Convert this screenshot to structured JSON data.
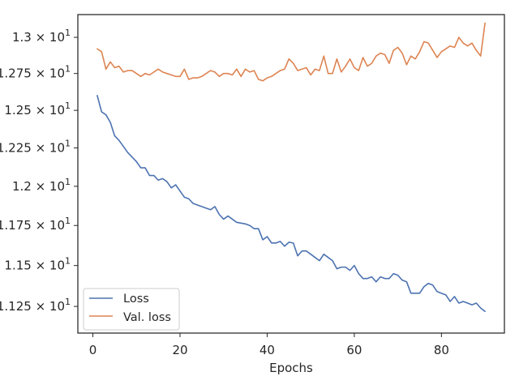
{
  "chart_data": {
    "type": "line",
    "xlabel": "Epochs",
    "ylabel": "",
    "title": "",
    "xlim": [
      -3.45,
      94.45
    ],
    "ylim": [
      11.09,
      13.16
    ],
    "y_scale": "log",
    "grid": false,
    "legend_position": "lower-left",
    "x_ticks": [
      0,
      20,
      40,
      60,
      80
    ],
    "x_tick_labels": [
      "0",
      "20",
      "40",
      "60",
      "80"
    ],
    "y_ticks": [
      11.25,
      11.5,
      11.75,
      12.0,
      12.25,
      12.5,
      12.75,
      13.0
    ],
    "y_tick_labels": [
      {
        "mantissa": "1.125",
        "sep": " × ",
        "base": "10",
        "exp": "1"
      },
      {
        "mantissa": "1.15",
        "sep": " × ",
        "base": "10",
        "exp": "1"
      },
      {
        "mantissa": "1.175",
        "sep": " × ",
        "base": "10",
        "exp": "1"
      },
      {
        "mantissa": "1.2",
        "sep": " × ",
        "base": "10",
        "exp": "1"
      },
      {
        "mantissa": "1.225",
        "sep": " × ",
        "base": "10",
        "exp": "1"
      },
      {
        "mantissa": "1.25",
        "sep": " × ",
        "base": "10",
        "exp": "1"
      },
      {
        "mantissa": "1.275",
        "sep": " × ",
        "base": "10",
        "exp": "1"
      },
      {
        "mantissa": "1.3",
        "sep": " × ",
        "base": "10",
        "exp": "1"
      }
    ],
    "x": [
      1,
      2,
      3,
      4,
      5,
      6,
      7,
      8,
      9,
      10,
      11,
      12,
      13,
      14,
      15,
      16,
      17,
      18,
      19,
      20,
      21,
      22,
      23,
      24,
      25,
      26,
      27,
      28,
      29,
      30,
      31,
      32,
      33,
      34,
      35,
      36,
      37,
      38,
      39,
      40,
      41,
      42,
      43,
      44,
      45,
      46,
      47,
      48,
      49,
      50,
      51,
      52,
      53,
      54,
      55,
      56,
      57,
      58,
      59,
      60,
      61,
      62,
      63,
      64,
      65,
      66,
      67,
      68,
      69,
      70,
      71,
      72,
      73,
      74,
      75,
      76,
      77,
      78,
      79,
      80,
      81,
      82,
      83,
      84,
      85,
      86,
      87,
      88,
      89,
      90
    ],
    "series": [
      {
        "name": "Loss",
        "color": "#4c72b0",
        "values": [
          12.6,
          12.49,
          12.47,
          12.42,
          12.33,
          12.3,
          12.26,
          12.22,
          12.19,
          12.16,
          12.12,
          12.12,
          12.07,
          12.07,
          12.04,
          12.05,
          12.03,
          11.99,
          12.01,
          11.97,
          11.93,
          11.92,
          11.89,
          11.88,
          11.87,
          11.86,
          11.85,
          11.87,
          11.82,
          11.79,
          11.81,
          11.79,
          11.77,
          11.765,
          11.76,
          11.75,
          11.73,
          11.73,
          11.66,
          11.68,
          11.64,
          11.64,
          11.65,
          11.62,
          11.645,
          11.64,
          11.56,
          11.59,
          11.59,
          11.57,
          11.55,
          11.53,
          11.57,
          11.55,
          11.53,
          11.48,
          11.49,
          11.49,
          11.47,
          11.5,
          11.45,
          11.42,
          11.42,
          11.43,
          11.4,
          11.43,
          11.42,
          11.42,
          11.45,
          11.44,
          11.41,
          11.4,
          11.33,
          11.33,
          11.33,
          11.37,
          11.39,
          11.38,
          11.34,
          11.33,
          11.32,
          11.28,
          11.31,
          11.27,
          11.28,
          11.27,
          11.26,
          11.27,
          11.24,
          11.22
        ]
      },
      {
        "name": "Val. loss",
        "color": "#dd8452",
        "values": [
          12.92,
          12.9,
          12.78,
          12.83,
          12.79,
          12.8,
          12.76,
          12.77,
          12.77,
          12.75,
          12.73,
          12.75,
          12.74,
          12.76,
          12.78,
          12.76,
          12.75,
          12.74,
          12.73,
          12.73,
          12.78,
          12.71,
          12.72,
          12.72,
          12.73,
          12.75,
          12.77,
          12.76,
          12.73,
          12.75,
          12.75,
          12.74,
          12.78,
          12.73,
          12.78,
          12.76,
          12.77,
          12.71,
          12.7,
          12.72,
          12.73,
          12.75,
          12.77,
          12.78,
          12.85,
          12.82,
          12.77,
          12.78,
          12.79,
          12.74,
          12.78,
          12.77,
          12.87,
          12.75,
          12.75,
          12.85,
          12.76,
          12.8,
          12.85,
          12.79,
          12.77,
          12.86,
          12.8,
          12.82,
          12.87,
          12.89,
          12.88,
          12.82,
          12.91,
          12.93,
          12.89,
          12.81,
          12.87,
          12.85,
          12.9,
          12.97,
          12.96,
          12.91,
          12.86,
          12.9,
          12.92,
          12.94,
          12.93,
          13.0,
          12.96,
          12.94,
          12.96,
          12.91,
          12.87,
          13.1
        ]
      }
    ]
  }
}
